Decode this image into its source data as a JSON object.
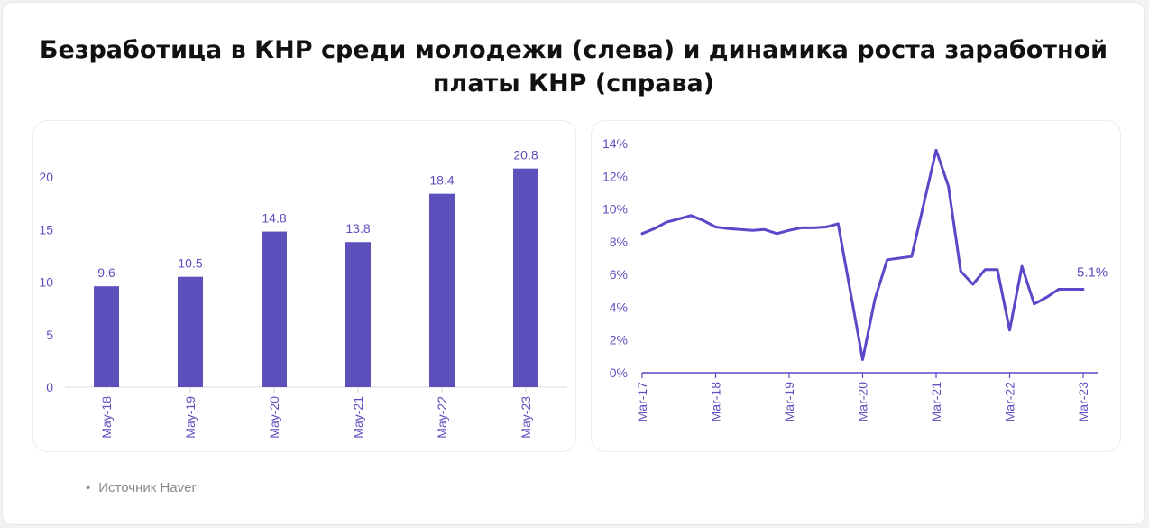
{
  "title": "Безработица в КНР среди молодежи (слева) и динамика роста заработной платы КНР (справа)",
  "source": "Источник Haver",
  "colors": {
    "accent": "#5d4fbc",
    "line": "#5b47c8",
    "axis_text": "#5b4fbf"
  },
  "chart_data": [
    {
      "type": "bar",
      "categories": [
        "May-18",
        "May-19",
        "May-20",
        "May-21",
        "May-22",
        "May-23"
      ],
      "values": [
        9.6,
        10.5,
        14.8,
        13.8,
        18.4,
        20.8
      ],
      "data_labels": [
        "9.6",
        "10.5",
        "14.8",
        "13.8",
        "18.4",
        "20.8"
      ],
      "yticks": [
        "0",
        "5",
        "10",
        "15",
        "20"
      ],
      "ylim": [
        0,
        23
      ],
      "grid": false
    },
    {
      "type": "line",
      "series": [
        {
          "x": [
            "Mar-17",
            "May-17",
            "Jul-17",
            "Sep-17",
            "Nov-17",
            "Jan-18",
            "Mar-18",
            "May-18",
            "Jul-18",
            "Sep-18",
            "Nov-18",
            "Jan-19",
            "Mar-19",
            "May-19",
            "Jul-19",
            "Sep-19",
            "Nov-19",
            "Mar-20",
            "May-20",
            "Jul-20",
            "Sep-20",
            "Nov-20",
            "Mar-21",
            "May-21",
            "Jul-21",
            "Sep-21",
            "Nov-21",
            "Jan-22",
            "Mar-22",
            "May-22",
            "Jul-22",
            "Sep-22",
            "Nov-22",
            "Jan-23",
            "Mar-23"
          ],
          "values": [
            8.5,
            8.8,
            9.2,
            9.4,
            9.6,
            9.3,
            8.9,
            8.8,
            8.75,
            8.7,
            8.75,
            8.5,
            8.7,
            8.85,
            8.85,
            8.9,
            9.1,
            0.8,
            4.5,
            6.9,
            7.0,
            7.1,
            13.6,
            11.4,
            6.2,
            5.4,
            6.3,
            6.3,
            2.6,
            6.5,
            4.2,
            4.6,
            5.1,
            5.1,
            5.1
          ],
          "end_label": "5.1%"
        }
      ],
      "xticks": [
        "Mar-17",
        "Mar-18",
        "Mar-19",
        "Mar-20",
        "Mar-21",
        "Mar-22",
        "Mar-23"
      ],
      "yticks": [
        "0%",
        "2%",
        "4%",
        "6%",
        "8%",
        "10%",
        "12%",
        "14%"
      ],
      "ylim": [
        0,
        14
      ],
      "grid": false
    }
  ]
}
